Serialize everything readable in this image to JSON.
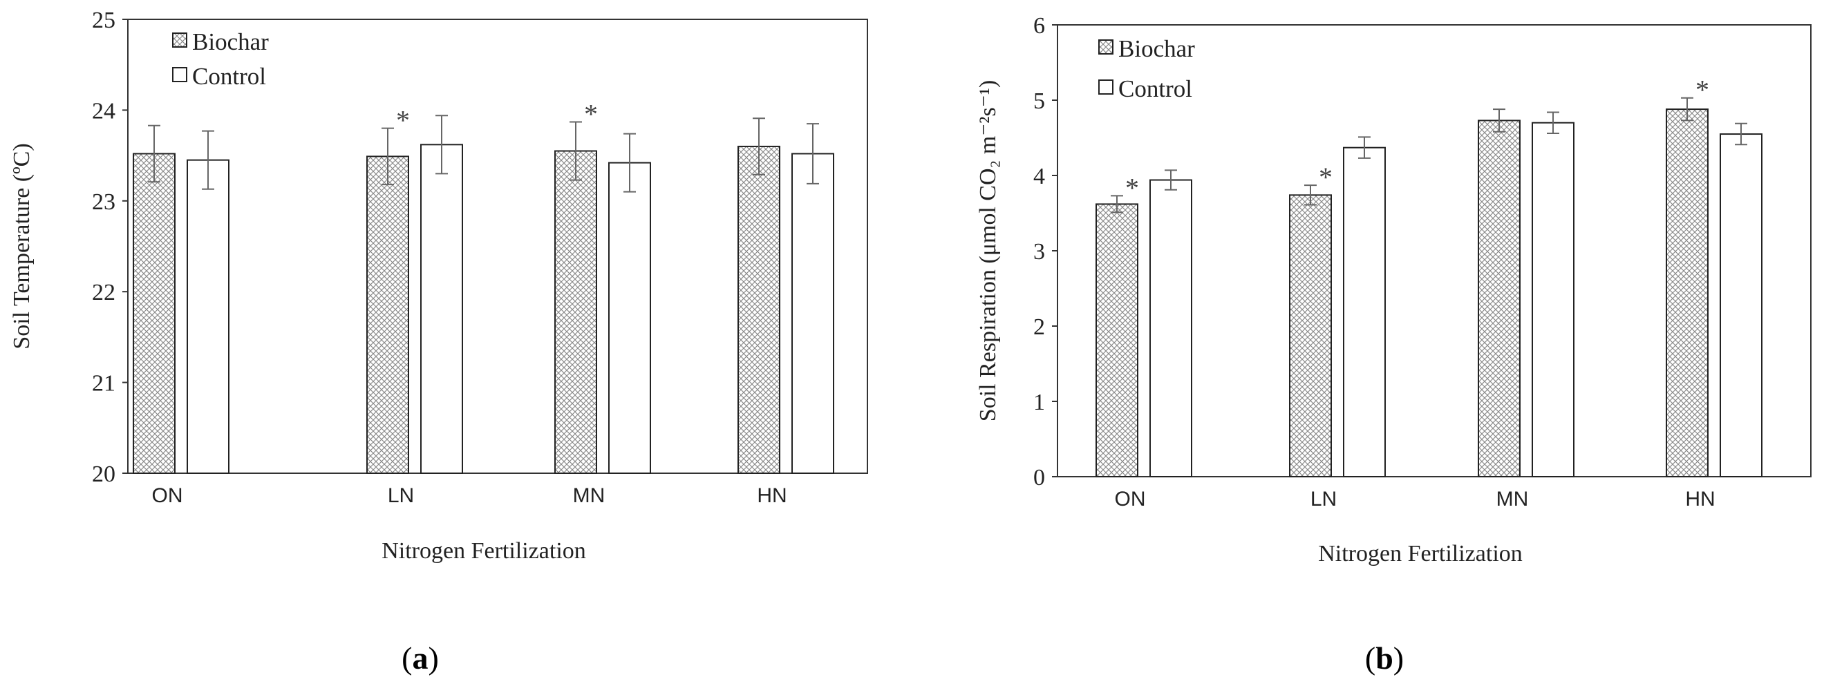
{
  "chart_data": [
    {
      "type": "bar",
      "title": "",
      "panel_label": "a",
      "xlabel": "Nitrogen Fertilization",
      "ylabel": "Soil Temperature (ºC)",
      "ylim": [
        20,
        25
      ],
      "yticks": [
        "20",
        "21",
        "22",
        "23",
        "24",
        "25"
      ],
      "categories": [
        "ON",
        "LN",
        "MN",
        "HN"
      ],
      "legend": [
        "Biochar",
        "Control"
      ],
      "series": [
        {
          "name": "Biochar",
          "values": [
            23.52,
            23.49,
            23.55,
            23.6
          ],
          "errors": [
            0.31,
            0.31,
            0.32,
            0.31
          ]
        },
        {
          "name": "Control",
          "values": [
            23.45,
            23.62,
            23.42,
            23.52
          ],
          "errors": [
            0.32,
            0.32,
            0.32,
            0.33
          ]
        }
      ],
      "annotations": [
        {
          "text": "*",
          "category": "LN",
          "series": "Biochar"
        },
        {
          "text": "*",
          "category": "MN",
          "series": "Biochar"
        }
      ]
    },
    {
      "type": "bar",
      "title": "",
      "panel_label": "b",
      "xlabel": "Nitrogen Fertilization",
      "ylabel": "Soil Respiration (μmol CO₂ m⁻²s⁻¹)",
      "ylim": [
        0,
        6
      ],
      "yticks": [
        "0",
        "1",
        "2",
        "3",
        "4",
        "5",
        "6"
      ],
      "categories": [
        "ON",
        "LN",
        "MN",
        "HN"
      ],
      "legend": [
        "Biochar",
        "Control"
      ],
      "series": [
        {
          "name": "Biochar",
          "values": [
            3.62,
            3.74,
            4.73,
            4.88
          ],
          "errors": [
            0.11,
            0.13,
            0.15,
            0.15
          ]
        },
        {
          "name": "Control",
          "values": [
            3.94,
            4.37,
            4.7,
            4.55
          ],
          "errors": [
            0.13,
            0.14,
            0.14,
            0.14
          ]
        }
      ],
      "annotations": [
        {
          "text": "*",
          "category": "ON",
          "series": "Biochar"
        },
        {
          "text": "*",
          "category": "LN",
          "series": "Biochar"
        },
        {
          "text": "*",
          "category": "HN",
          "series": "Biochar"
        }
      ]
    }
  ]
}
